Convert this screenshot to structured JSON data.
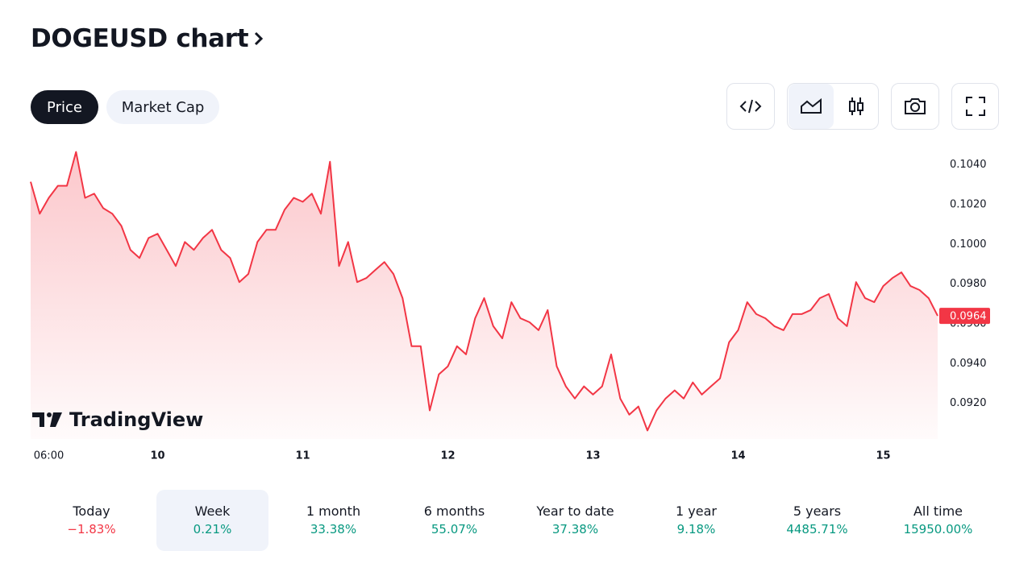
{
  "header": {
    "title": "DOGEUSD chart"
  },
  "tabs": [
    "Price",
    "Market Cap"
  ],
  "brand": "TradingView",
  "chart_data": {
    "type": "line",
    "color": "#f23645",
    "categories": [
      null,
      null,
      "06:00",
      null,
      null,
      null,
      null,
      null,
      null,
      null,
      null,
      null,
      null,
      null,
      "10",
      null,
      null,
      null,
      null,
      null,
      null,
      null,
      null,
      null,
      null,
      null,
      null,
      null,
      null,
      null,
      "11",
      null,
      null,
      null,
      null,
      null,
      null,
      null,
      null,
      null,
      null,
      null,
      null,
      null,
      null,
      null,
      "12",
      null,
      null,
      null,
      null,
      null,
      null,
      null,
      null,
      null,
      null,
      null,
      null,
      null,
      null,
      null,
      "13",
      null,
      null,
      null,
      null,
      null,
      null,
      null,
      null,
      null,
      null,
      null,
      null,
      null,
      null,
      null,
      "14",
      null,
      null,
      null,
      null,
      null,
      null,
      null,
      null,
      null,
      null,
      null,
      null,
      null,
      null,
      null,
      "15",
      null,
      null,
      null,
      null,
      null,
      null
    ],
    "values": [
      0.10315,
      0.10154,
      0.10234,
      0.10295,
      0.10295,
      0.10465,
      0.10234,
      0.10255,
      0.10182,
      0.10154,
      0.10093,
      0.09972,
      0.09931,
      0.10032,
      0.10053,
      0.09972,
      0.09891,
      0.10012,
      0.09972,
      0.10032,
      0.10073,
      0.09972,
      0.09931,
      0.0981,
      0.09851,
      0.10012,
      0.10073,
      0.10073,
      0.10174,
      0.10234,
      0.10214,
      0.10255,
      0.10154,
      0.10416,
      0.09891,
      0.10012,
      0.0981,
      0.0983,
      0.09871,
      0.09911,
      0.09851,
      0.09729,
      0.09487,
      0.09487,
      0.09164,
      0.09345,
      0.09386,
      0.09487,
      0.09446,
      0.09628,
      0.09729,
      0.09588,
      0.09527,
      0.09709,
      0.09628,
      0.09608,
      0.09568,
      0.09669,
      0.09386,
      0.09285,
      0.09224,
      0.09285,
      0.09244,
      0.09285,
      0.09446,
      0.09224,
      0.09143,
      0.09184,
      0.09063,
      0.09164,
      0.09224,
      0.09265,
      0.09224,
      0.09305,
      0.09244,
      0.09285,
      0.09325,
      0.09507,
      0.09568,
      0.09709,
      0.09649,
      0.09628,
      0.09588,
      0.09568,
      0.09649,
      0.09649,
      0.09669,
      0.09729,
      0.0975,
      0.09628,
      0.09588,
      0.0981,
      0.09729,
      0.09709,
      0.0979,
      0.0983,
      0.09859,
      0.0979,
      0.0977,
      0.09729,
      0.0964
    ],
    "last_label": "0.0964",
    "ylim": [
      0.0902,
      0.105
    ],
    "yticks": [
      {
        "value": 0.092,
        "label": "0.0920"
      },
      {
        "value": 0.094,
        "label": "0.0940"
      },
      {
        "value": 0.096,
        "label": "0.0960"
      },
      {
        "value": 0.098,
        "label": "0.0980"
      },
      {
        "value": 0.1,
        "label": "0.1000"
      },
      {
        "value": 0.102,
        "label": "0.1020"
      },
      {
        "value": 0.104,
        "label": "0.1040"
      }
    ],
    "grid": false
  },
  "periods": [
    {
      "label": "Today",
      "change": "−1.83%",
      "color": "#f23645"
    },
    {
      "label": "Week",
      "change": "0.21%",
      "color": "#089981"
    },
    {
      "label": "1 month",
      "change": "33.38%",
      "color": "#089981"
    },
    {
      "label": "6 months",
      "change": "55.07%",
      "color": "#089981"
    },
    {
      "label": "Year to date",
      "change": "37.38%",
      "color": "#089981"
    },
    {
      "label": "1 year",
      "change": "9.18%",
      "color": "#089981"
    },
    {
      "label": "5 years",
      "change": "4485.71%",
      "color": "#089981"
    },
    {
      "label": "All time",
      "change": "15950.00%",
      "color": "#089981"
    }
  ]
}
